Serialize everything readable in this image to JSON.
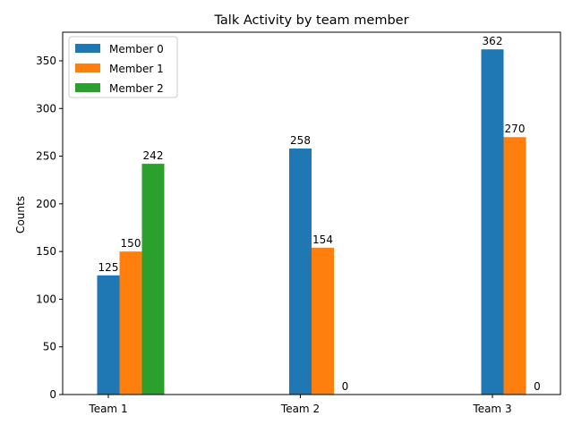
{
  "chart_data": {
    "type": "bar",
    "title": "Talk Activity by team member",
    "xlabel": "",
    "ylabel": "Counts",
    "categories": [
      "Team 1",
      "Team 2",
      "Team 3"
    ],
    "series": [
      {
        "name": "Member 0",
        "values": [
          125,
          258,
          362
        ],
        "color": "#1f77b4"
      },
      {
        "name": "Member 1",
        "values": [
          150,
          154,
          270
        ],
        "color": "#ff7f0e"
      },
      {
        "name": "Member 2",
        "values": [
          242,
          0,
          0
        ],
        "color": "#2ca02c"
      }
    ],
    "ylim": [
      0,
      380
    ],
    "yticks": [
      0,
      50,
      100,
      150,
      200,
      250,
      300,
      350
    ],
    "grid": false,
    "legend_position": "top-left"
  }
}
